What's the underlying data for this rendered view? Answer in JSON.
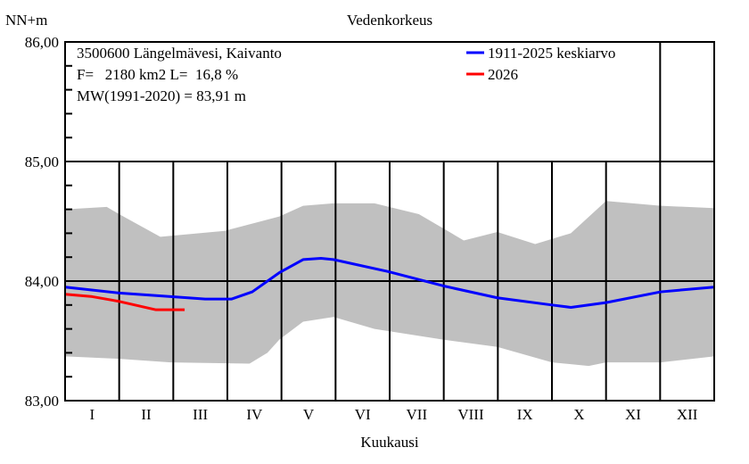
{
  "chart_data": {
    "type": "line",
    "title": "Vedenkorkeus",
    "ylabel": "NN+m",
    "xlabel": "Kuukausi",
    "ylim": [
      83.0,
      86.0
    ],
    "xlim_months": [
      0,
      12
    ],
    "yticks": [
      83.0,
      84.0,
      85.0,
      86.0
    ],
    "ytick_labels": [
      "83,00",
      "84,00",
      "85,00",
      "86,00"
    ],
    "categories": [
      "I",
      "II",
      "III",
      "IV",
      "V",
      "VI",
      "VII",
      "VIII",
      "IX",
      "X",
      "XI",
      "XII"
    ],
    "info_lines": [
      "3500600 Längelmävesi, Kaivanto",
      "F=   2180 km2 L=  16,8 %",
      "MW(1991-2020) = 83,91 m"
    ],
    "legend_position": "top-right",
    "colors": {
      "mean": "#0000ff",
      "current": "#ff0000",
      "range": "#c0c0c0"
    },
    "band": {
      "name": "min-max range",
      "upper": [
        [
          0,
          84.6
        ],
        [
          0.77,
          84.62
        ],
        [
          1.0,
          84.56
        ],
        [
          1.76,
          84.37
        ],
        [
          2.95,
          84.42
        ],
        [
          3.96,
          84.54
        ],
        [
          4.4,
          84.63
        ],
        [
          4.96,
          84.65
        ],
        [
          5.72,
          84.65
        ],
        [
          6.54,
          84.56
        ],
        [
          7.37,
          84.34
        ],
        [
          7.99,
          84.41
        ],
        [
          8.69,
          84.31
        ],
        [
          9.35,
          84.4
        ],
        [
          10.0,
          84.67
        ],
        [
          11.01,
          84.63
        ],
        [
          12,
          84.61
        ]
      ],
      "lower": [
        [
          0,
          83.37
        ],
        [
          1.0,
          83.35
        ],
        [
          1.95,
          83.32
        ],
        [
          3.41,
          83.31
        ],
        [
          3.74,
          83.4
        ],
        [
          3.96,
          83.51
        ],
        [
          4.4,
          83.66
        ],
        [
          4.96,
          83.7
        ],
        [
          5.72,
          83.6
        ],
        [
          6.99,
          83.51
        ],
        [
          7.99,
          83.45
        ],
        [
          9.0,
          83.32
        ],
        [
          9.68,
          83.29
        ],
        [
          10.0,
          83.32
        ],
        [
          11.01,
          83.32
        ],
        [
          12,
          83.37
        ]
      ]
    },
    "series": [
      {
        "name": "1911-2025 keskiarvo",
        "points": [
          [
            0,
            83.95
          ],
          [
            1.0,
            83.9
          ],
          [
            1.95,
            83.87
          ],
          [
            2.59,
            83.85
          ],
          [
            3.08,
            83.85
          ],
          [
            3.46,
            83.91
          ],
          [
            3.96,
            84.07
          ],
          [
            4.4,
            84.18
          ],
          [
            4.73,
            84.19
          ],
          [
            4.96,
            84.18
          ],
          [
            5.97,
            84.08
          ],
          [
            6.99,
            83.96
          ],
          [
            7.99,
            83.86
          ],
          [
            9.0,
            83.8
          ],
          [
            9.35,
            83.78
          ],
          [
            10.0,
            83.82
          ],
          [
            11.01,
            83.91
          ],
          [
            12,
            83.95
          ]
        ]
      },
      {
        "name": "2026",
        "points": [
          [
            0,
            83.89
          ],
          [
            0.5,
            83.87
          ],
          [
            1.0,
            83.83
          ],
          [
            1.68,
            83.76
          ],
          [
            2.21,
            83.76
          ]
        ]
      }
    ]
  }
}
